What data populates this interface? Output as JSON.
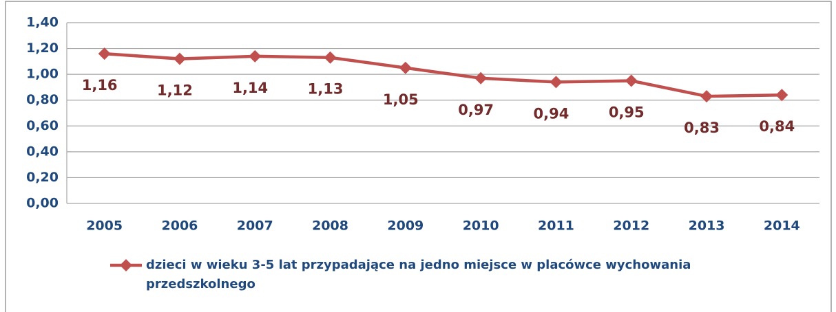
{
  "chart_data": {
    "type": "line",
    "categories": [
      "2005",
      "2006",
      "2007",
      "2008",
      "2009",
      "2010",
      "2011",
      "2012",
      "2013",
      "2014"
    ],
    "series": [
      {
        "name": "dzieci w wieku 3-5 lat przypadające na jedno miejsce w placówce wychowania przedszkolnego",
        "color": "#c0504d",
        "values": [
          1.16,
          1.12,
          1.14,
          1.13,
          1.05,
          0.97,
          0.94,
          0.95,
          0.83,
          0.84
        ],
        "value_labels": [
          "1,16",
          "1,12",
          "1,14",
          "1,13",
          "1,05",
          "0,97",
          "0,94",
          "0,95",
          "0,83",
          "0,84"
        ]
      }
    ],
    "ylim": [
      0,
      1.4
    ],
    "yticks": [
      {
        "value": 0,
        "label": "0,00"
      },
      {
        "value": 0.2,
        "label": "0,20"
      },
      {
        "value": 0.4,
        "label": "0,40"
      },
      {
        "value": 0.6,
        "label": "0,60"
      },
      {
        "value": 0.8,
        "label": "0,80"
      },
      {
        "value": 1.0,
        "label": "1,00"
      },
      {
        "value": 1.2,
        "label": "1,20"
      },
      {
        "value": 1.4,
        "label": "1,40"
      }
    ],
    "grid": true,
    "legend": "bottom"
  }
}
